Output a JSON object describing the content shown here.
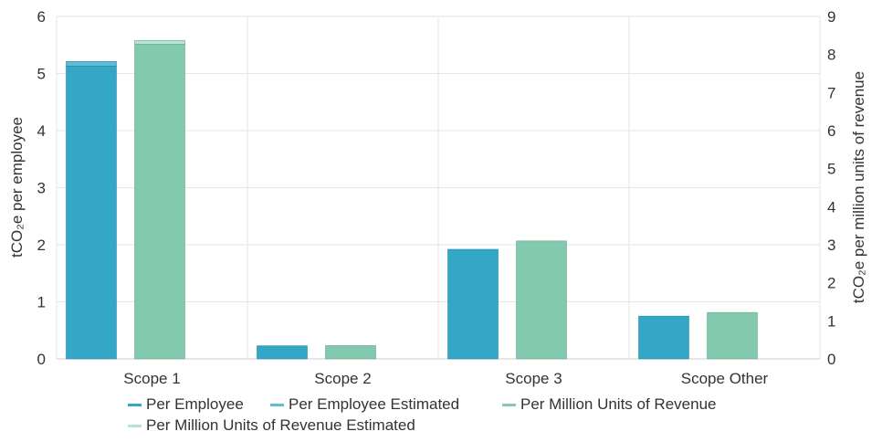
{
  "chart_data": {
    "type": "bar",
    "categories": [
      "Scope 1",
      "Scope 2",
      "Scope 3",
      "Scope Other"
    ],
    "ylabel": "tCO₂e per employee",
    "y2label": "tCO₂e per million units of revenue",
    "ylim": [
      0,
      6
    ],
    "y2lim": [
      0,
      9
    ],
    "yticks": [
      "0",
      "1",
      "2",
      "3",
      "4",
      "5",
      "6"
    ],
    "y2ticks": [
      "0",
      "1",
      "2",
      "3",
      "4",
      "5",
      "6",
      "7",
      "8",
      "9"
    ],
    "grid": true,
    "legend_position": "bottom",
    "series": [
      {
        "name": "Per Employee",
        "axis": "left",
        "values": [
          5.13,
          0.23,
          1.92,
          0.75
        ],
        "color": "#35a7c6"
      },
      {
        "name": "Per Employee Estimated",
        "axis": "left",
        "values": [
          0.08,
          0,
          0,
          0
        ],
        "color": "#5fbbd6"
      },
      {
        "name": "Per Million Units of Revenue",
        "axis": "right",
        "values": [
          8.27,
          0.35,
          3.1,
          1.22
        ],
        "color": "#82c9ad"
      },
      {
        "name": "Per Million Units of Revenue Estimated",
        "axis": "right",
        "values": [
          0.1,
          0,
          0,
          0
        ],
        "color": "#b9e2d4"
      }
    ]
  }
}
